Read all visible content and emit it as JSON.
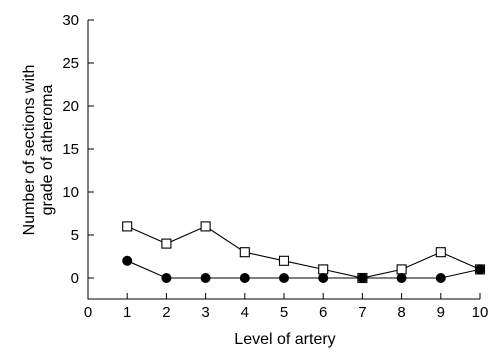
{
  "chart_data": {
    "type": "line",
    "title": "",
    "xlabel": "Level of artery",
    "ylabel": [
      "Number of sections with",
      "grade of atheroma"
    ],
    "x": [
      1,
      2,
      3,
      4,
      5,
      6,
      7,
      8,
      9,
      10
    ],
    "xlim": [
      0,
      10
    ],
    "ylim": [
      0,
      30
    ],
    "xticks": [
      0,
      1,
      2,
      3,
      4,
      5,
      6,
      7,
      8,
      9,
      10
    ],
    "yticks": [
      0,
      5,
      10,
      15,
      20,
      25,
      30
    ],
    "grid": false,
    "legend": "none",
    "series": [
      {
        "marker": "open-square",
        "values": [
          6,
          4,
          6,
          3,
          2,
          1,
          0,
          1,
          3,
          1
        ]
      },
      {
        "marker": "filled-circle",
        "values": [
          2,
          0,
          0,
          0,
          0,
          0,
          0,
          0,
          0,
          1
        ]
      }
    ]
  }
}
